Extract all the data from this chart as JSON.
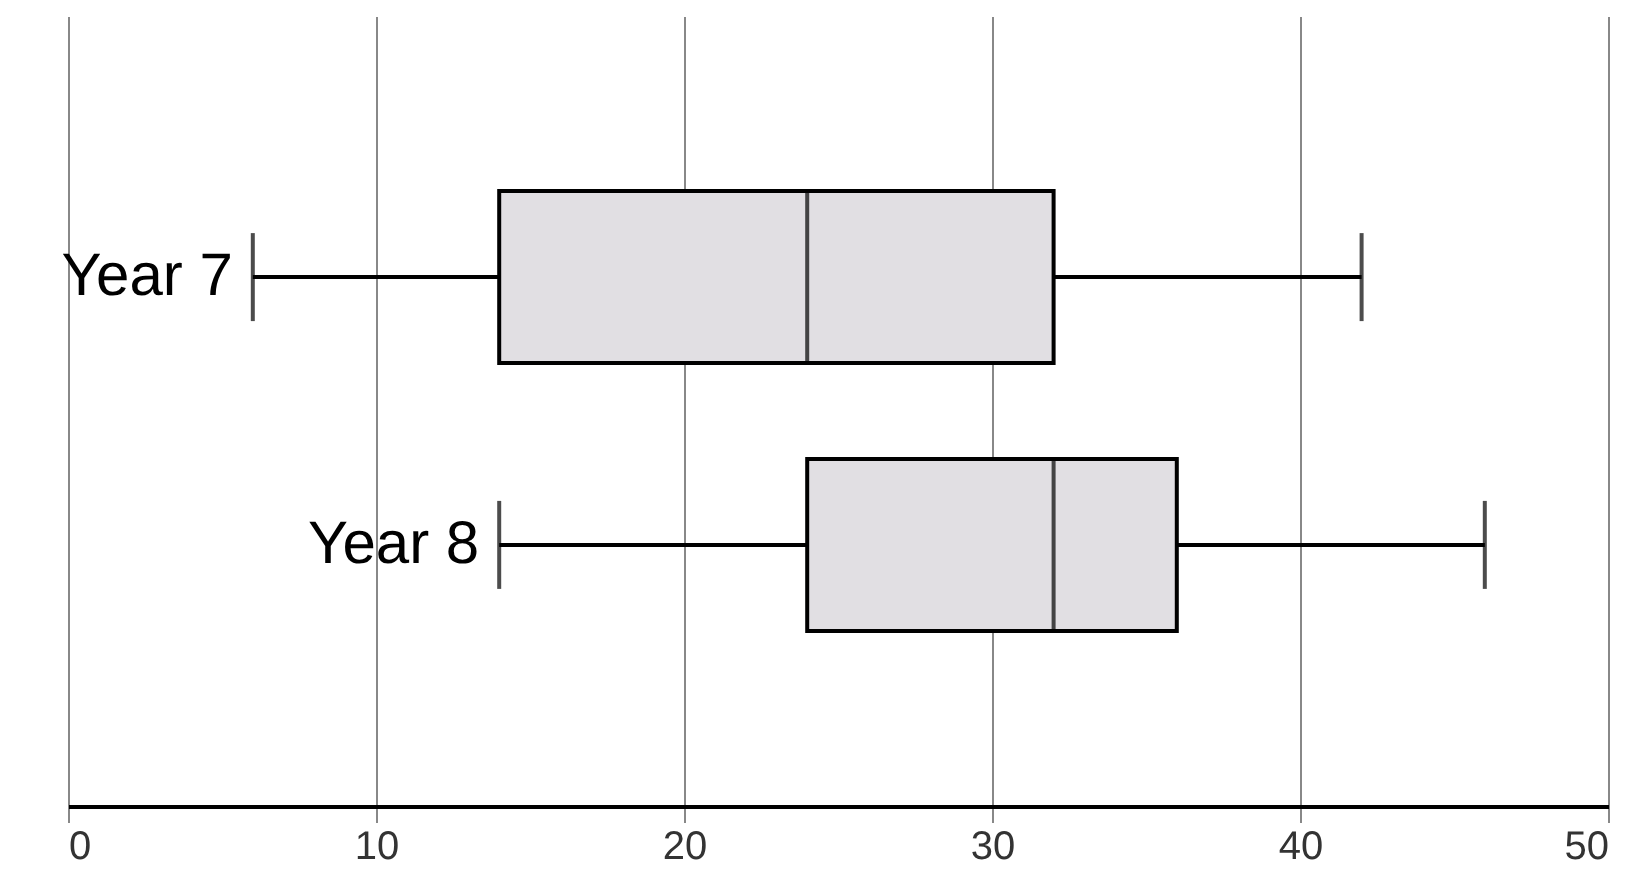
{
  "chart_data": {
    "type": "box",
    "orientation": "horizontal",
    "categories": [
      "Year 7",
      "Year 8"
    ],
    "color": "#e1dfe3",
    "boxes": [
      {
        "low": 6,
        "q1": 14,
        "median": 24,
        "q3": 32,
        "high": 42
      },
      {
        "low": 14,
        "q1": 24,
        "median": 32,
        "q3": 36,
        "high": 46
      }
    ],
    "xlim": [
      0,
      50
    ],
    "xticks": [
      0,
      10,
      20,
      30,
      40,
      50
    ],
    "grid": "x"
  }
}
